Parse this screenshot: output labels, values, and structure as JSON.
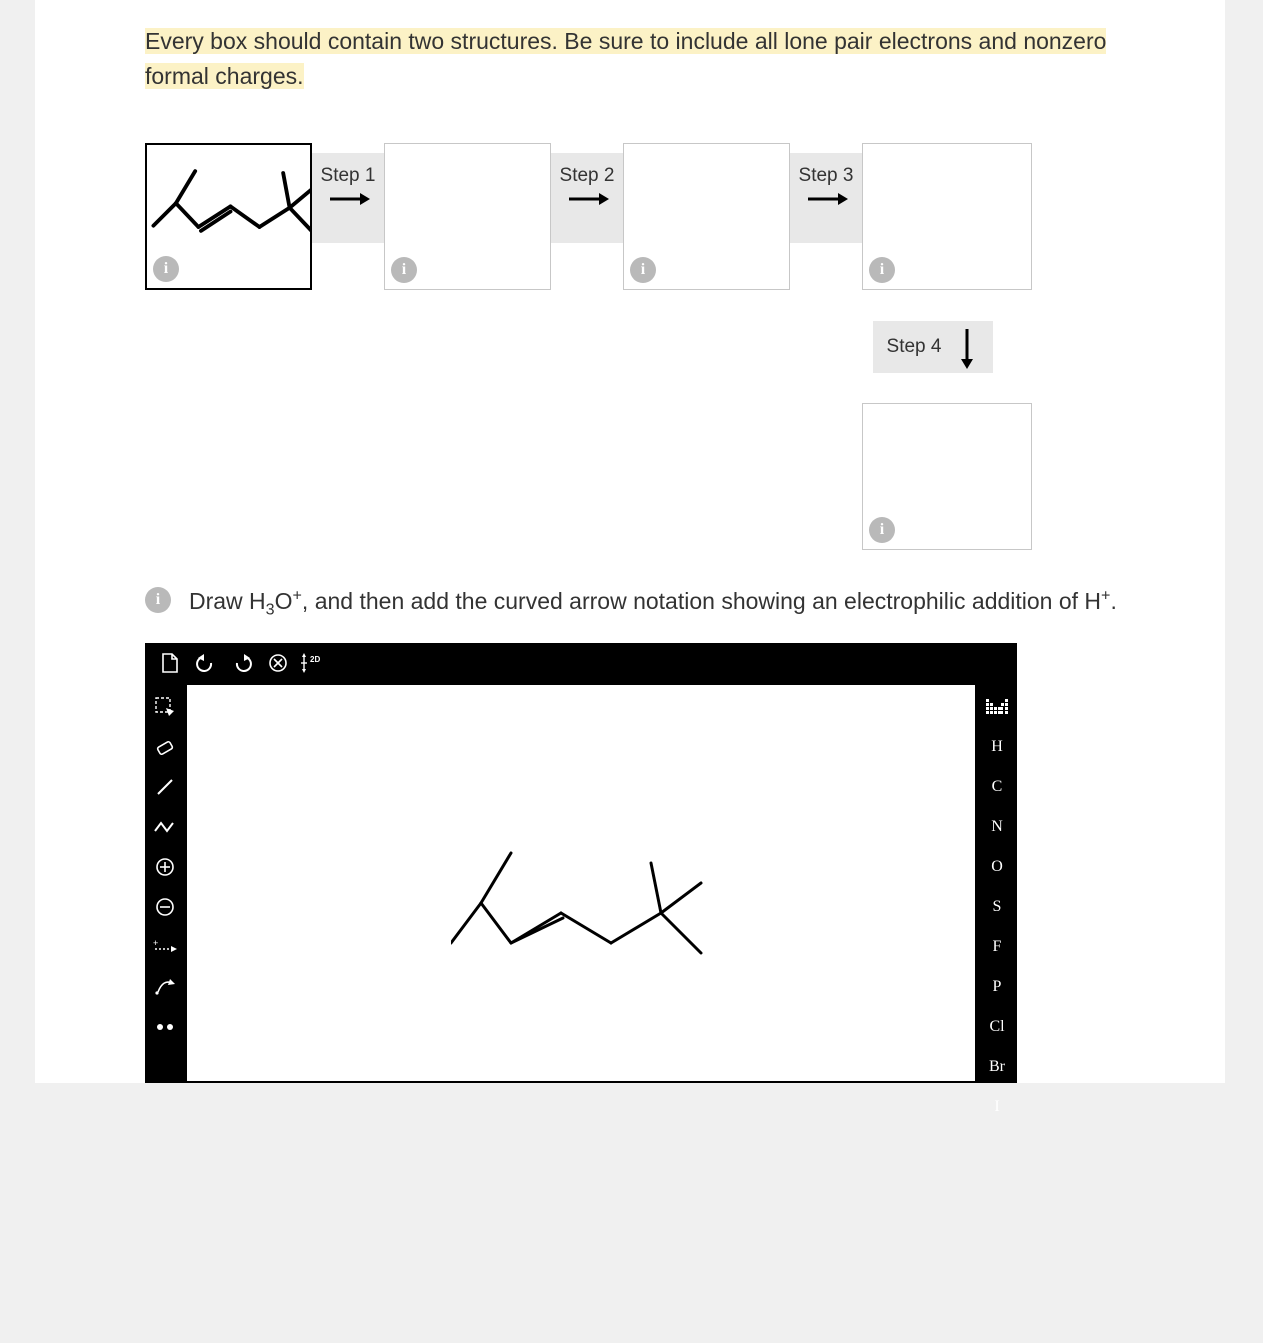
{
  "instruction": "Every box should contain two structures. Be sure to include all lone pair electrons and nonzero formal charges.",
  "steps": {
    "s1": "Step 1",
    "s2": "Step 2",
    "s3": "Step 3",
    "s4": "Step 4"
  },
  "hint_prefix": "Draw H",
  "hint_sub1": "3",
  "hint_mid1": "O",
  "hint_sup1": "+",
  "hint_mid2": ", and then add the curved arrow notation showing an electrophilic addition of H",
  "hint_sup2": "+",
  "hint_suffix": ".",
  "editor": {
    "topbar": {
      "new": "new-file",
      "undo": "undo",
      "redo": "redo",
      "clear": "clear",
      "view2d": "2D"
    },
    "left": {
      "marquee": "marquee-select",
      "eraser": "eraser",
      "bond": "single-bond",
      "chain": "chain",
      "plus": "increase-charge",
      "minus": "decrease-charge",
      "reaction": "reaction-arrow",
      "curved": "curved-arrow",
      "lonepair": "lone-pair"
    },
    "right": {
      "periodic": "periodic-table",
      "H": "H",
      "C": "C",
      "N": "N",
      "O": "O",
      "S": "S",
      "F": "F",
      "P": "P",
      "Cl": "Cl",
      "Br": "Br",
      "I": "I"
    }
  },
  "colors": {
    "highlight_bg": "#fcf2c6",
    "box_border": "#c7c7c7",
    "step_bg": "#e8e8e8",
    "badge_bg": "#b9b9b9",
    "editor_bg": "#000000",
    "canvas_bg": "#ffffff",
    "stroke": "#000000"
  },
  "molecule": {
    "stroke": "#000000",
    "stroke_width": 3,
    "segments": [
      [
        30,
        70,
        60,
        20
      ],
      [
        30,
        70,
        0,
        110
      ],
      [
        30,
        70,
        60,
        110
      ],
      [
        60,
        110,
        110,
        80
      ],
      [
        60,
        110,
        112,
        85
      ],
      [
        110,
        80,
        160,
        110
      ],
      [
        160,
        110,
        210,
        80
      ],
      [
        210,
        80,
        200,
        30
      ],
      [
        210,
        80,
        250,
        50
      ],
      [
        210,
        80,
        250,
        120
      ]
    ]
  }
}
